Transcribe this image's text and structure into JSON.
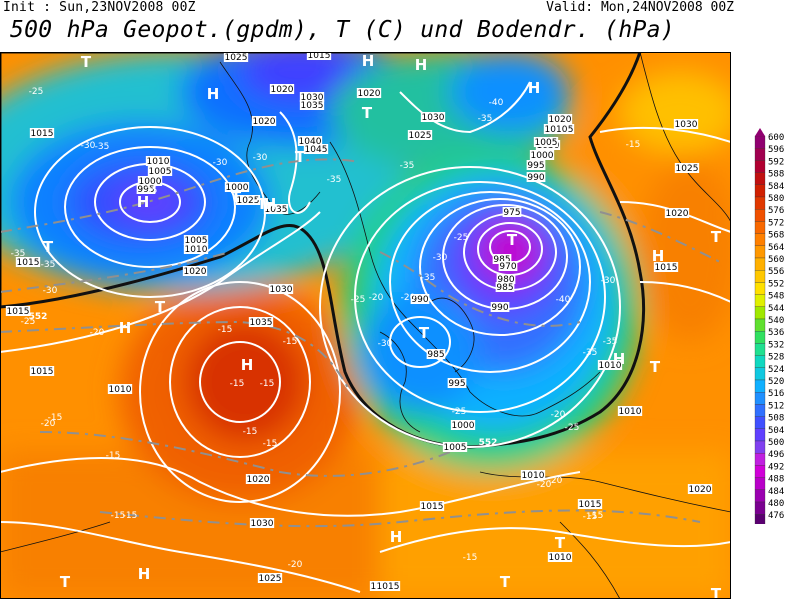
{
  "header": {
    "init": "Init : Sun,23NOV2008 00Z",
    "valid": "Valid: Mon,24NOV2008 00Z",
    "title": "500 hPa Geopot.(gpdm), T (C) und Bodendr. (hPa)"
  },
  "colors": {
    "c476": "#5a0070",
    "c480": "#7a0090",
    "c484": "#9a00b0",
    "c488": "#b800c8",
    "c492": "#d000d8",
    "c496": "#c020e0",
    "c500": "#8040f0",
    "c504": "#6040ff",
    "c508": "#4050ff",
    "c512": "#3070ff",
    "c516": "#2090ff",
    "c520": "#10b0ff",
    "c524": "#10c8e0",
    "c528": "#10d8c0",
    "c532": "#20e090",
    "c536": "#30e060",
    "c540": "#60e030",
    "c544": "#a0e800",
    "c548": "#e0f000",
    "c552": "#ffe000",
    "c556": "#ffc800",
    "c560": "#ffb000",
    "c564": "#ff9800",
    "c568": "#ff8000",
    "c572": "#f86800",
    "c576": "#f05000",
    "c580": "#e03800",
    "c584": "#d02000",
    "c588": "#c01010",
    "c592": "#b00030",
    "c596": "#a00050",
    "c600": "#900070"
  },
  "colorbar": {
    "labels": [
      "600",
      "596",
      "592",
      "588",
      "584",
      "580",
      "576",
      "572",
      "568",
      "564",
      "560",
      "556",
      "552",
      "548",
      "544",
      "540",
      "536",
      "532",
      "528",
      "524",
      "520",
      "516",
      "512",
      "508",
      "504",
      "500",
      "496",
      "492",
      "488",
      "484",
      "480",
      "476"
    ]
  },
  "map": {
    "pressure_labels": [
      {
        "t": "1025"
      },
      {
        "t": "1015"
      },
      {
        "t": "1020"
      },
      {
        "t": "1030"
      },
      {
        "t": "1035"
      },
      {
        "t": "1020"
      },
      {
        "t": "1020"
      },
      {
        "t": "1030"
      },
      {
        "t": "1025"
      },
      {
        "t": "1035"
      },
      {
        "t": "1040"
      },
      {
        "t": "1045"
      },
      {
        "t": "1015"
      },
      {
        "t": "1010"
      },
      {
        "t": "1005"
      },
      {
        "t": "1000"
      },
      {
        "t": "995"
      },
      {
        "t": "1000"
      },
      {
        "t": "1025"
      },
      {
        "t": "1005"
      },
      {
        "t": "1010"
      },
      {
        "t": "1015"
      },
      {
        "t": "1020"
      },
      {
        "t": "1030"
      },
      {
        "t": "1035"
      },
      {
        "t": "1030"
      },
      {
        "t": "1020"
      },
      {
        "t": "1015"
      },
      {
        "t": "1010"
      },
      {
        "t": "1005"
      },
      {
        "t": "1000"
      },
      {
        "t": "995"
      },
      {
        "t": "990"
      },
      {
        "t": "975"
      },
      {
        "t": "985"
      },
      {
        "t": "970"
      },
      {
        "t": "980"
      },
      {
        "t": "985"
      },
      {
        "t": "990"
      },
      {
        "t": "990"
      },
      {
        "t": "985"
      },
      {
        "t": "995"
      },
      {
        "t": "1000"
      },
      {
        "t": "1005"
      },
      {
        "t": "1010"
      },
      {
        "t": "1015"
      },
      {
        "t": "1010"
      },
      {
        "t": "1010"
      },
      {
        "t": "1015"
      },
      {
        "t": "1020"
      },
      {
        "t": "1025"
      },
      {
        "t": "1030"
      },
      {
        "t": "1015"
      },
      {
        "t": "1010"
      },
      {
        "t": "1015"
      },
      {
        "t": "1020"
      },
      {
        "t": "1030"
      },
      {
        "t": "1025"
      },
      {
        "t": "1020"
      },
      {
        "t": "1015"
      },
      {
        "t": "1010"
      },
      {
        "t": "1015"
      },
      {
        "t": "1020"
      }
    ],
    "temp_labels": [
      {
        "t": "-25"
      },
      {
        "t": "-30"
      },
      {
        "t": "-35"
      },
      {
        "t": "-35"
      },
      {
        "t": "-35"
      },
      {
        "t": "-30"
      },
      {
        "t": "-25"
      },
      {
        "t": "-35"
      },
      {
        "t": "-30"
      },
      {
        "t": "-30"
      },
      {
        "t": "-35"
      },
      {
        "t": "-35"
      },
      {
        "t": "-40"
      },
      {
        "t": "-35"
      },
      {
        "t": "-25"
      },
      {
        "t": "-30"
      },
      {
        "t": "-25"
      },
      {
        "t": "-20"
      },
      {
        "t": "-15"
      },
      {
        "t": "-15"
      },
      {
        "t": "-15"
      },
      {
        "t": "-15"
      },
      {
        "t": "-15"
      },
      {
        "t": "-15"
      },
      {
        "t": "-15"
      },
      {
        "t": "-15"
      },
      {
        "t": "-20"
      },
      {
        "t": "-20"
      },
      {
        "t": "-25"
      },
      {
        "t": "-30"
      },
      {
        "t": "-35"
      },
      {
        "t": "-35"
      },
      {
        "t": "-40"
      },
      {
        "t": "-35"
      },
      {
        "t": "-30"
      },
      {
        "t": "-25"
      },
      {
        "t": "-20"
      },
      {
        "t": "-20"
      },
      {
        "t": "-15"
      },
      {
        "t": "-20"
      },
      {
        "t": "-15"
      },
      {
        "t": "-15"
      },
      {
        "t": "-20"
      },
      {
        "t": "-20"
      },
      {
        "t": "-15"
      },
      {
        "t": "-15"
      },
      {
        "t": "-15"
      }
    ],
    "hl_labels": [
      {
        "t": "T"
      },
      {
        "t": "H"
      },
      {
        "t": "H"
      },
      {
        "t": "H"
      },
      {
        "t": "H"
      },
      {
        "t": "T"
      },
      {
        "t": "T"
      },
      {
        "t": "H"
      },
      {
        "t": "H"
      },
      {
        "t": "T"
      },
      {
        "t": "T"
      },
      {
        "t": "T"
      },
      {
        "t": "H"
      },
      {
        "t": "T"
      },
      {
        "t": "T"
      },
      {
        "t": "H"
      },
      {
        "t": "T"
      },
      {
        "t": "H"
      },
      {
        "t": "T"
      },
      {
        "t": "H"
      },
      {
        "t": "T"
      },
      {
        "t": "H"
      },
      {
        "t": "T"
      },
      {
        "t": "T"
      },
      {
        "t": "H"
      },
      {
        "t": "T"
      },
      {
        "t": "T"
      }
    ],
    "contour_labels": [
      {
        "t": "552"
      },
      {
        "t": "552"
      }
    ]
  }
}
